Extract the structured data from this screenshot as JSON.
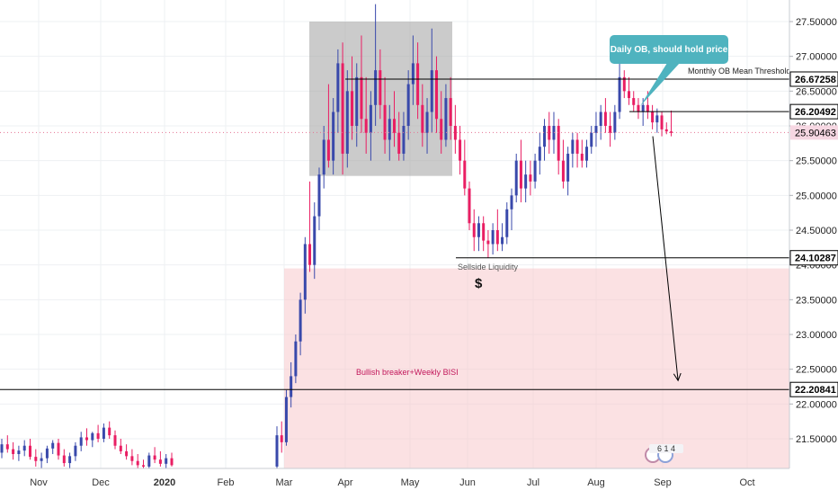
{
  "chart_data": {
    "type": "candlestick",
    "series_name": "",
    "ylim": [
      21.1,
      27.75
    ],
    "y_ticks": [
      21.5,
      22.0,
      22.5,
      23.0,
      23.5,
      24.0,
      24.5,
      25.0,
      25.5,
      26.0,
      26.5,
      27.0,
      27.5
    ],
    "x_ticks": [
      "Nov",
      "Dec",
      "2020",
      "Feb",
      "Mar",
      "Apr",
      "May",
      "Jun",
      "Jul",
      "Aug",
      "Sep",
      "Oct"
    ],
    "grid": true,
    "colors": {
      "up": "#3949ab",
      "down": "#e91e63",
      "zone_gray": "#a8a8a8",
      "zone_pink": "#f8c9cc",
      "label_pink": "#c2185b",
      "callout": "#4fb3bf",
      "current_price_bg": "#f6d7e2"
    },
    "price_labels": [
      {
        "value": 26.67258,
        "text": "26.67258"
      },
      {
        "value": 26.20492,
        "text": "26.20492"
      },
      {
        "value": 25.90463,
        "text": "25.90463",
        "current": true
      },
      {
        "value": 24.10287,
        "text": "24.10287"
      },
      {
        "value": 22.20841,
        "text": "22.20841"
      }
    ],
    "annotations": {
      "callout": "Daily OB, should hold price",
      "monthly_ob": "Monthly OB Mean Threshold",
      "sellside": "Sellside Liquidity",
      "dollar": "$",
      "bullish": "Bullish breaker+Weekly BISI",
      "events": "6 1 4"
    },
    "candles": [
      {
        "o": 21.3,
        "h": 21.5,
        "l": 21.22,
        "c": 21.42
      },
      {
        "o": 21.42,
        "h": 21.55,
        "l": 21.3,
        "c": 21.35
      },
      {
        "o": 21.35,
        "h": 21.45,
        "l": 21.2,
        "c": 21.28
      },
      {
        "o": 21.28,
        "h": 21.4,
        "l": 21.18,
        "c": 21.33
      },
      {
        "o": 21.33,
        "h": 21.48,
        "l": 21.25,
        "c": 21.4
      },
      {
        "o": 21.4,
        "h": 21.5,
        "l": 21.2,
        "c": 21.24
      },
      {
        "o": 21.24,
        "h": 21.35,
        "l": 21.1,
        "c": 21.18
      },
      {
        "o": 21.18,
        "h": 21.3,
        "l": 21.08,
        "c": 21.22
      },
      {
        "o": 21.22,
        "h": 21.4,
        "l": 21.15,
        "c": 21.36
      },
      {
        "o": 21.36,
        "h": 21.48,
        "l": 21.28,
        "c": 21.44
      },
      {
        "o": 21.44,
        "h": 21.5,
        "l": 21.2,
        "c": 21.26
      },
      {
        "o": 21.26,
        "h": 21.35,
        "l": 21.1,
        "c": 21.15
      },
      {
        "o": 21.15,
        "h": 21.3,
        "l": 21.05,
        "c": 21.25
      },
      {
        "o": 21.25,
        "h": 21.45,
        "l": 21.18,
        "c": 21.4
      },
      {
        "o": 21.4,
        "h": 21.6,
        "l": 21.32,
        "c": 21.52
      },
      {
        "o": 21.52,
        "h": 21.65,
        "l": 21.4,
        "c": 21.48
      },
      {
        "o": 21.48,
        "h": 21.6,
        "l": 21.38,
        "c": 21.58
      },
      {
        "o": 21.58,
        "h": 21.7,
        "l": 21.45,
        "c": 21.5
      },
      {
        "o": 21.5,
        "h": 21.72,
        "l": 21.45,
        "c": 21.66
      },
      {
        "o": 21.66,
        "h": 21.75,
        "l": 21.5,
        "c": 21.55
      },
      {
        "o": 21.55,
        "h": 21.62,
        "l": 21.35,
        "c": 21.4
      },
      {
        "o": 21.4,
        "h": 21.5,
        "l": 21.28,
        "c": 21.32
      },
      {
        "o": 21.32,
        "h": 21.42,
        "l": 21.2,
        "c": 21.25
      },
      {
        "o": 21.25,
        "h": 21.35,
        "l": 21.12,
        "c": 21.18
      },
      {
        "o": 21.18,
        "h": 21.28,
        "l": 21.08,
        "c": 21.12
      },
      {
        "o": 21.12,
        "h": 21.2,
        "l": 21.05,
        "c": 21.1
      },
      {
        "o": 21.1,
        "h": 21.3,
        "l": 21.05,
        "c": 21.26
      },
      {
        "o": 21.26,
        "h": 21.38,
        "l": 21.15,
        "c": 21.2
      },
      {
        "o": 21.2,
        "h": 21.32,
        "l": 21.1,
        "c": 21.14
      },
      {
        "o": 21.14,
        "h": 21.28,
        "l": 21.08,
        "c": 21.22
      },
      {
        "o": 21.22,
        "h": 21.3,
        "l": 21.1,
        "c": 21.12
      },
      {
        "o": 21.1,
        "h": 21.68,
        "l": 21.05,
        "c": 21.55
      },
      {
        "o": 21.55,
        "h": 21.75,
        "l": 21.3,
        "c": 21.45
      },
      {
        "o": 21.45,
        "h": 22.2,
        "l": 21.4,
        "c": 22.1
      },
      {
        "o": 22.1,
        "h": 22.6,
        "l": 21.95,
        "c": 22.4
      },
      {
        "o": 22.4,
        "h": 23.0,
        "l": 22.3,
        "c": 22.9
      },
      {
        "o": 22.9,
        "h": 23.6,
        "l": 22.7,
        "c": 23.5
      },
      {
        "o": 23.5,
        "h": 24.4,
        "l": 23.3,
        "c": 24.3
      },
      {
        "o": 24.3,
        "h": 25.2,
        "l": 23.9,
        "c": 24.0
      },
      {
        "o": 24.0,
        "h": 24.9,
        "l": 23.8,
        "c": 24.7
      },
      {
        "o": 24.7,
        "h": 25.4,
        "l": 24.5,
        "c": 25.3
      },
      {
        "o": 25.3,
        "h": 26.0,
        "l": 25.1,
        "c": 25.8
      },
      {
        "o": 25.8,
        "h": 26.6,
        "l": 25.4,
        "c": 25.5
      },
      {
        "o": 25.5,
        "h": 26.4,
        "l": 25.3,
        "c": 26.2
      },
      {
        "o": 26.2,
        "h": 27.1,
        "l": 25.9,
        "c": 26.9
      },
      {
        "o": 26.9,
        "h": 27.2,
        "l": 25.3,
        "c": 25.6
      },
      {
        "o": 25.6,
        "h": 26.8,
        "l": 25.4,
        "c": 26.5
      },
      {
        "o": 26.5,
        "h": 27.0,
        "l": 25.8,
        "c": 26.0
      },
      {
        "o": 26.0,
        "h": 26.9,
        "l": 25.7,
        "c": 26.7
      },
      {
        "o": 26.7,
        "h": 27.3,
        "l": 25.9,
        "c": 26.1
      },
      {
        "o": 26.1,
        "h": 26.7,
        "l": 25.6,
        "c": 25.9
      },
      {
        "o": 25.9,
        "h": 26.5,
        "l": 25.5,
        "c": 26.3
      },
      {
        "o": 26.3,
        "h": 27.75,
        "l": 26.0,
        "c": 26.8
      },
      {
        "o": 26.8,
        "h": 27.1,
        "l": 26.1,
        "c": 26.3
      },
      {
        "o": 26.3,
        "h": 26.7,
        "l": 25.6,
        "c": 25.8
      },
      {
        "o": 25.8,
        "h": 26.3,
        "l": 25.5,
        "c": 26.1
      },
      {
        "o": 26.1,
        "h": 26.5,
        "l": 25.7,
        "c": 25.9
      },
      {
        "o": 25.9,
        "h": 26.2,
        "l": 25.5,
        "c": 25.6
      },
      {
        "o": 25.6,
        "h": 26.2,
        "l": 25.5,
        "c": 26.0
      },
      {
        "o": 26.0,
        "h": 26.8,
        "l": 25.8,
        "c": 26.6
      },
      {
        "o": 26.6,
        "h": 27.3,
        "l": 26.3,
        "c": 26.9
      },
      {
        "o": 26.9,
        "h": 27.2,
        "l": 26.1,
        "c": 26.3
      },
      {
        "o": 26.3,
        "h": 26.6,
        "l": 25.7,
        "c": 25.9
      },
      {
        "o": 25.9,
        "h": 26.4,
        "l": 25.6,
        "c": 26.2
      },
      {
        "o": 26.2,
        "h": 27.4,
        "l": 25.9,
        "c": 26.8
      },
      {
        "o": 26.8,
        "h": 27.0,
        "l": 25.9,
        "c": 26.1
      },
      {
        "o": 26.1,
        "h": 26.5,
        "l": 25.6,
        "c": 25.8
      },
      {
        "o": 25.8,
        "h": 26.6,
        "l": 25.7,
        "c": 26.4
      },
      {
        "o": 26.4,
        "h": 26.7,
        "l": 25.8,
        "c": 26.0
      },
      {
        "o": 26.0,
        "h": 26.3,
        "l": 25.6,
        "c": 25.8
      },
      {
        "o": 25.8,
        "h": 26.0,
        "l": 25.3,
        "c": 25.5
      },
      {
        "o": 25.5,
        "h": 25.8,
        "l": 25.0,
        "c": 25.1
      },
      {
        "o": 25.1,
        "h": 25.2,
        "l": 24.5,
        "c": 24.6
      },
      {
        "o": 24.6,
        "h": 24.8,
        "l": 24.2,
        "c": 24.4
      },
      {
        "o": 24.4,
        "h": 24.7,
        "l": 24.2,
        "c": 24.6
      },
      {
        "o": 24.6,
        "h": 24.7,
        "l": 24.2,
        "c": 24.35
      },
      {
        "o": 24.35,
        "h": 24.5,
        "l": 24.1,
        "c": 24.3
      },
      {
        "o": 24.3,
        "h": 24.6,
        "l": 24.15,
        "c": 24.5
      },
      {
        "o": 24.5,
        "h": 24.8,
        "l": 24.2,
        "c": 24.3
      },
      {
        "o": 24.3,
        "h": 24.6,
        "l": 24.2,
        "c": 24.4
      },
      {
        "o": 24.4,
        "h": 24.9,
        "l": 24.3,
        "c": 24.8
      },
      {
        "o": 24.8,
        "h": 25.1,
        "l": 24.5,
        "c": 25.0
      },
      {
        "o": 25.0,
        "h": 25.6,
        "l": 24.9,
        "c": 25.5
      },
      {
        "o": 25.5,
        "h": 25.8,
        "l": 24.9,
        "c": 25.1
      },
      {
        "o": 25.1,
        "h": 25.5,
        "l": 24.9,
        "c": 25.3
      },
      {
        "o": 25.3,
        "h": 25.5,
        "l": 25.0,
        "c": 25.2
      },
      {
        "o": 25.2,
        "h": 25.6,
        "l": 25.1,
        "c": 25.5
      },
      {
        "o": 25.5,
        "h": 25.9,
        "l": 25.3,
        "c": 25.7
      },
      {
        "o": 25.7,
        "h": 26.1,
        "l": 25.5,
        "c": 26.0
      },
      {
        "o": 26.0,
        "h": 26.2,
        "l": 25.6,
        "c": 25.8
      },
      {
        "o": 25.8,
        "h": 26.2,
        "l": 25.6,
        "c": 26.0
      },
      {
        "o": 26.0,
        "h": 26.1,
        "l": 25.3,
        "c": 25.5
      },
      {
        "o": 25.5,
        "h": 25.8,
        "l": 25.1,
        "c": 25.2
      },
      {
        "o": 25.2,
        "h": 25.7,
        "l": 25.0,
        "c": 25.6
      },
      {
        "o": 25.6,
        "h": 25.9,
        "l": 25.4,
        "c": 25.8
      },
      {
        "o": 25.8,
        "h": 25.9,
        "l": 25.4,
        "c": 25.6
      },
      {
        "o": 25.6,
        "h": 25.8,
        "l": 25.4,
        "c": 25.5
      },
      {
        "o": 25.5,
        "h": 25.8,
        "l": 25.4,
        "c": 25.7
      },
      {
        "o": 25.7,
        "h": 26.0,
        "l": 25.6,
        "c": 25.9
      },
      {
        "o": 25.9,
        "h": 26.2,
        "l": 25.7,
        "c": 26.0
      },
      {
        "o": 26.0,
        "h": 26.3,
        "l": 25.8,
        "c": 26.2
      },
      {
        "o": 26.2,
        "h": 26.4,
        "l": 25.9,
        "c": 26.0
      },
      {
        "o": 26.0,
        "h": 26.2,
        "l": 25.7,
        "c": 25.9
      },
      {
        "o": 25.9,
        "h": 26.3,
        "l": 25.8,
        "c": 26.2
      },
      {
        "o": 26.2,
        "h": 26.9,
        "l": 26.1,
        "c": 26.7
      },
      {
        "o": 26.7,
        "h": 26.8,
        "l": 26.4,
        "c": 26.5
      },
      {
        "o": 26.5,
        "h": 26.7,
        "l": 26.3,
        "c": 26.4
      },
      {
        "o": 26.4,
        "h": 26.5,
        "l": 26.2,
        "c": 26.3
      },
      {
        "o": 26.3,
        "h": 26.4,
        "l": 26.1,
        "c": 26.2
      },
      {
        "o": 26.2,
        "h": 26.4,
        "l": 26.0,
        "c": 26.3
      },
      {
        "o": 26.3,
        "h": 26.5,
        "l": 26.1,
        "c": 26.2
      },
      {
        "o": 26.2,
        "h": 26.3,
        "l": 25.95,
        "c": 26.05
      },
      {
        "o": 26.05,
        "h": 26.25,
        "l": 25.9,
        "c": 26.15
      },
      {
        "o": 26.15,
        "h": 26.2,
        "l": 25.85,
        "c": 25.95
      },
      {
        "o": 25.95,
        "h": 26.05,
        "l": 25.88,
        "c": 25.92
      },
      {
        "o": 25.92,
        "h": 26.22,
        "l": 25.85,
        "c": 25.9
      }
    ]
  }
}
